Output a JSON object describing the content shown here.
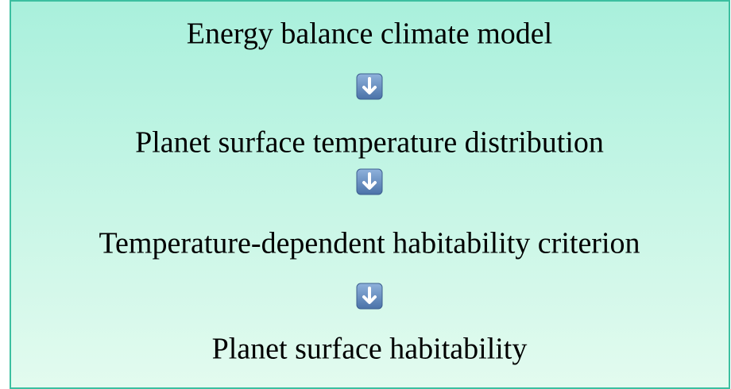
{
  "nodes": [
    {
      "label": "Energy balance climate model"
    },
    {
      "label": "Planet surface temperature distribution"
    },
    {
      "label": "Temperature-dependent habitability criterion"
    },
    {
      "label": "Planet surface habitability"
    }
  ]
}
